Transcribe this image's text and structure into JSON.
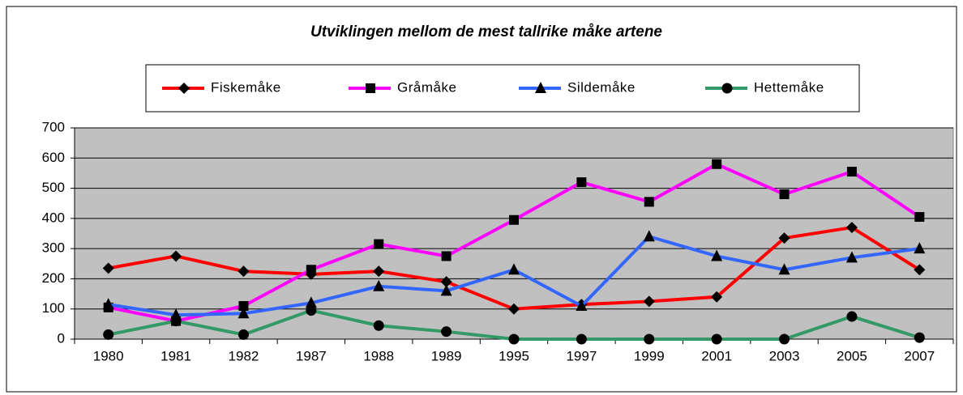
{
  "chart_data": {
    "type": "line",
    "title": "Utviklingen mellom de mest tallrike måke artene",
    "categories": [
      "1980",
      "1981",
      "1982",
      "1987",
      "1988",
      "1989",
      "1995",
      "1997",
      "1999",
      "2001",
      "2003",
      "2005",
      "2007"
    ],
    "series": [
      {
        "name": "Fiskemåke",
        "color": "#ff0000",
        "marker": "diamond",
        "values": [
          235,
          275,
          225,
          215,
          225,
          190,
          100,
          115,
          125,
          140,
          335,
          370,
          230
        ]
      },
      {
        "name": "Gråmåke",
        "color": "#ff00ff",
        "marker": "square",
        "values": [
          105,
          60,
          110,
          230,
          315,
          275,
          395,
          520,
          455,
          580,
          480,
          555,
          405
        ]
      },
      {
        "name": "Sildemåke",
        "color": "#3366ff",
        "marker": "triangle",
        "values": [
          115,
          80,
          85,
          120,
          175,
          160,
          230,
          110,
          340,
          275,
          230,
          270,
          300
        ]
      },
      {
        "name": "Hettemåke",
        "color": "#339966",
        "marker": "circle",
        "values": [
          15,
          60,
          15,
          95,
          45,
          25,
          0,
          0,
          0,
          0,
          0,
          75,
          5
        ]
      }
    ],
    "ylim": [
      0,
      700
    ],
    "yticks": [
      0,
      100,
      200,
      300,
      400,
      500,
      600,
      700
    ],
    "grid": true,
    "legend": "top"
  }
}
